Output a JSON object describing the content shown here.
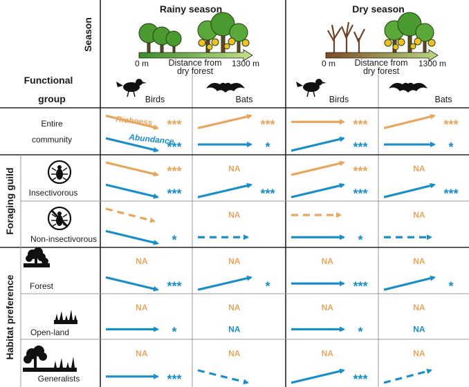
{
  "header": {
    "season_axis_label": "Season",
    "functional_group_label_1": "Functional",
    "functional_group_label_2": "group",
    "rainy_title": "Rainy season",
    "dry_title": "Dry season",
    "distance_label_line1": "Distance from",
    "distance_label_line2": "dry forest",
    "distance_start": "0 m",
    "distance_end": "1300 m",
    "birds_label": "Birds",
    "bats_label": "Bats"
  },
  "legend": {
    "richness": "Richness",
    "abundance": "Abundance"
  },
  "side_labels": {
    "foraging_guild": "Foraging guild",
    "habitat_preference": "Habitat preference"
  },
  "rows": [
    {
      "id": "entire",
      "label_line1": "Entire",
      "label_line2": "community"
    },
    {
      "id": "insectivorous",
      "label_line1": "Insectivorous",
      "label_line2": ""
    },
    {
      "id": "noninsect",
      "label_line1": "Non-insectivorous",
      "label_line2": ""
    },
    {
      "id": "forest",
      "label_line1": "Forest",
      "label_line2": ""
    },
    {
      "id": "openland",
      "label_line1": "Open-land",
      "label_line2": ""
    },
    {
      "id": "generalists",
      "label_line1": "Generalists",
      "label_line2": ""
    }
  ],
  "columns": [
    "Rainy season - Birds",
    "Rainy season - Bats",
    "Dry season - Birds",
    "Dry season - Bats"
  ],
  "cells": {
    "entire": [
      {
        "rich": {
          "trend": "down",
          "sig": "***"
        },
        "abund": {
          "trend": "down",
          "sig": "***"
        }
      },
      {
        "rich": {
          "trend": "up",
          "sig": "***"
        },
        "abund": {
          "trend": "flat",
          "sig": "*"
        }
      },
      {
        "rich": {
          "trend": "flat",
          "sig": "***"
        },
        "abund": {
          "trend": "up",
          "sig": "***"
        }
      },
      {
        "rich": {
          "trend": "up",
          "sig": "***"
        },
        "abund": {
          "trend": "flat",
          "sig": "*"
        }
      }
    ],
    "insectivorous": [
      {
        "rich": {
          "trend": "down",
          "sig": "***"
        },
        "abund": {
          "trend": "down",
          "sig": "***"
        }
      },
      {
        "rich": {
          "trend": "na",
          "sig": "NA"
        },
        "abund": {
          "trend": "up",
          "sig": "***"
        }
      },
      {
        "rich": {
          "trend": "up",
          "sig": "***"
        },
        "abund": {
          "trend": "up",
          "sig": "***"
        }
      },
      {
        "rich": {
          "trend": "na",
          "sig": "NA"
        },
        "abund": {
          "trend": "up",
          "sig": "***"
        }
      }
    ],
    "noninsect": [
      {
        "rich": {
          "trend": "down-dashed",
          "sig": ""
        },
        "abund": {
          "trend": "down",
          "sig": "*"
        }
      },
      {
        "rich": {
          "trend": "na",
          "sig": "NA"
        },
        "abund": {
          "trend": "flat-dashed",
          "sig": ""
        }
      },
      {
        "rich": {
          "trend": "flat-dashed",
          "sig": ""
        },
        "abund": {
          "trend": "flat",
          "sig": "*"
        }
      },
      {
        "rich": {
          "trend": "na",
          "sig": "NA"
        },
        "abund": {
          "trend": "flat-dashed",
          "sig": ""
        }
      }
    ],
    "forest": [
      {
        "rich": {
          "trend": "na",
          "sig": "NA"
        },
        "abund": {
          "trend": "down",
          "sig": "***"
        }
      },
      {
        "rich": {
          "trend": "na",
          "sig": "NA"
        },
        "abund": {
          "trend": "up",
          "sig": "*"
        }
      },
      {
        "rich": {
          "trend": "na",
          "sig": "NA"
        },
        "abund": {
          "trend": "flat",
          "sig": "***"
        }
      },
      {
        "rich": {
          "trend": "na",
          "sig": "NA"
        },
        "abund": {
          "trend": "up",
          "sig": "*"
        }
      }
    ],
    "openland": [
      {
        "rich": {
          "trend": "na",
          "sig": "NA"
        },
        "abund": {
          "trend": "flat",
          "sig": "*"
        }
      },
      {
        "rich": {
          "trend": "na",
          "sig": "NA"
        },
        "abund": {
          "trend": "na",
          "sig": "NA"
        }
      },
      {
        "rich": {
          "trend": "na",
          "sig": "NA"
        },
        "abund": {
          "trend": "flat",
          "sig": "*"
        }
      },
      {
        "rich": {
          "trend": "na",
          "sig": "NA"
        },
        "abund": {
          "trend": "na",
          "sig": "NA"
        }
      }
    ],
    "generalists": [
      {
        "rich": {
          "trend": "na",
          "sig": "NA"
        },
        "abund": {
          "trend": "flat",
          "sig": "***"
        }
      },
      {
        "rich": {
          "trend": "na",
          "sig": "NA"
        },
        "abund": {
          "trend": "down-dashed",
          "sig": ""
        }
      },
      {
        "rich": {
          "trend": "na",
          "sig": "NA"
        },
        "abund": {
          "trend": "up",
          "sig": "***"
        }
      },
      {
        "rich": {
          "trend": "na",
          "sig": "NA"
        },
        "abund": {
          "trend": "up-dashed",
          "sig": ""
        }
      }
    ]
  },
  "colors": {
    "richness": "#e8a55c",
    "abundance": "#1a8ec9",
    "grid": "#222222"
  }
}
